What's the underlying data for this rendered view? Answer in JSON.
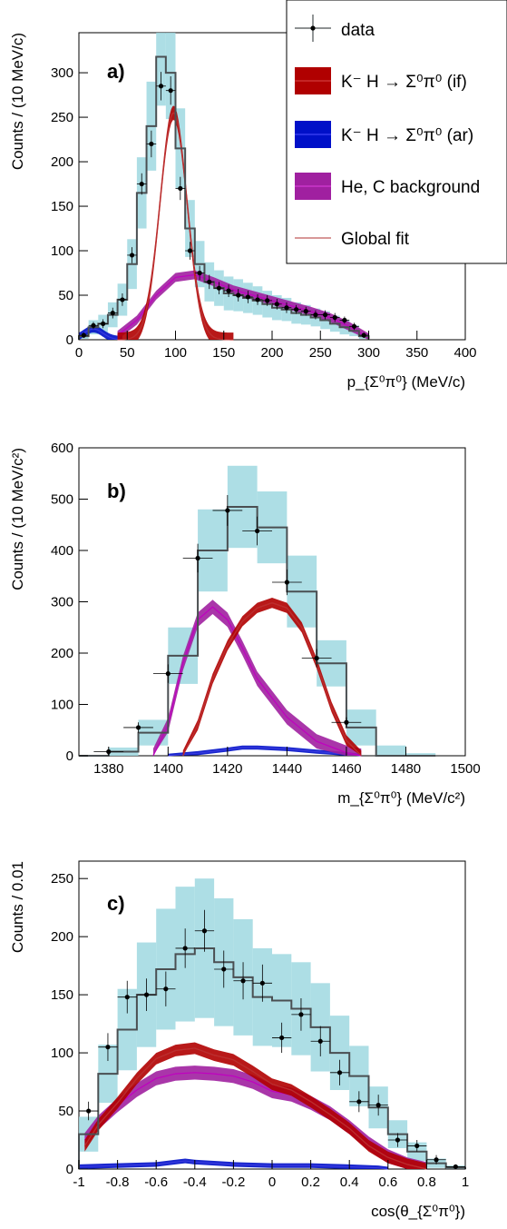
{
  "colors": {
    "data": "#000000",
    "mc_sum": "#4a4f52",
    "syst_band": "#9fd8e0",
    "if": "#b00000",
    "if_band": "#d33333",
    "ar": "#0010c8",
    "ar_band": "#3a3ae0",
    "bkg": "#c000c0",
    "bkg_band": "#a020a0",
    "fit": "#b03030"
  },
  "legend": {
    "data": "data",
    "if": "K⁻ H → Σ⁰π⁰ (if)",
    "ar": "K⁻ H → Σ⁰π⁰ (ar)",
    "bkg": "He, C background",
    "fit": "Global fit"
  },
  "chart_data": [
    {
      "type": "histogram",
      "panel_label": "a)",
      "xlabel": "p_{Σ⁰π⁰} (MeV/c)",
      "ylabel": "Counts / (10 MeV/c)",
      "xlim": [
        0,
        400
      ],
      "ylim": [
        0,
        345
      ],
      "xticks": [
        0,
        50,
        100,
        150,
        200,
        250,
        300,
        350,
        400
      ],
      "yticks": [
        0,
        50,
        100,
        150,
        200,
        250,
        300
      ],
      "data_points": {
        "x": [
          5,
          15,
          25,
          35,
          45,
          55,
          65,
          75,
          85,
          95,
          105,
          115,
          125,
          135,
          145,
          155,
          165,
          175,
          185,
          195,
          205,
          215,
          225,
          235,
          245,
          255,
          265,
          275,
          285,
          295
        ],
        "y": [
          5,
          16,
          18,
          30,
          45,
          95,
          175,
          220,
          285,
          280,
          170,
          100,
          75,
          65,
          58,
          55,
          50,
          48,
          45,
          44,
          40,
          36,
          34,
          32,
          28,
          28,
          25,
          22,
          15,
          5
        ],
        "yerr": [
          3,
          4,
          5,
          6,
          7,
          9,
          12,
          15,
          16,
          16,
          13,
          10,
          8,
          8,
          7,
          7,
          7,
          7,
          6,
          6,
          6,
          6,
          5,
          5,
          5,
          5,
          5,
          4,
          4,
          3
        ]
      },
      "mc_sum": {
        "edges": [
          0,
          10,
          20,
          30,
          40,
          50,
          60,
          70,
          80,
          90,
          100,
          110,
          120,
          130,
          140,
          150,
          160,
          170,
          180,
          190,
          200,
          210,
          220,
          230,
          240,
          250,
          260,
          270,
          280,
          290,
          300
        ],
        "values": [
          4,
          14,
          18,
          28,
          45,
          85,
          165,
          240,
          318,
          300,
          215,
          125,
          85,
          65,
          58,
          52,
          50,
          47,
          44,
          40,
          36,
          34,
          30,
          28,
          25,
          22,
          18,
          14,
          10,
          4
        ],
        "syst": [
          3,
          8,
          10,
          14,
          18,
          28,
          40,
          50,
          55,
          52,
          45,
          32,
          26,
          22,
          20,
          19,
          18,
          17,
          16,
          15,
          14,
          13,
          12,
          11,
          10,
          10,
          9,
          8,
          6,
          3
        ]
      },
      "if_curve": {
        "peak": 255,
        "mean": 98,
        "sigma": 14,
        "band": 8,
        "xmin": 40,
        "xmax": 160
      },
      "bkg_curve": {
        "x": [
          40,
          60,
          80,
          100,
          120,
          140,
          160,
          180,
          200,
          220,
          240,
          260,
          280,
          300
        ],
        "y": [
          5,
          22,
          50,
          70,
          73,
          65,
          56,
          50,
          44,
          38,
          32,
          25,
          15,
          2
        ],
        "band": 5
      },
      "ar_curve": {
        "peak": 12,
        "mean": 15,
        "sigma": 10,
        "band": 4,
        "xmin": 0,
        "xmax": 45
      },
      "fit_line": true
    },
    {
      "type": "histogram",
      "panel_label": "b)",
      "xlabel": "m_{Σ⁰π⁰} (MeV/c²)",
      "ylabel": "Counts / (10 MeV/c²)",
      "xlim": [
        1370,
        1500
      ],
      "ylim": [
        0,
        600
      ],
      "xticks": [
        1380,
        1400,
        1420,
        1440,
        1460,
        1480,
        1500
      ],
      "yticks": [
        0,
        100,
        200,
        300,
        400,
        500,
        600
      ],
      "data_points": {
        "x": [
          1380,
          1390,
          1400,
          1410,
          1420,
          1430,
          1440,
          1450,
          1460
        ],
        "y": [
          8,
          55,
          160,
          385,
          478,
          438,
          338,
          190,
          65
        ],
        "yerr": [
          4,
          10,
          18,
          28,
          30,
          28,
          25,
          18,
          10
        ]
      },
      "mc_sum": {
        "edges": [
          1370,
          1380,
          1390,
          1400,
          1410,
          1420,
          1430,
          1440,
          1450,
          1460,
          1470,
          1480,
          1490
        ],
        "values": [
          0,
          8,
          45,
          195,
          400,
          485,
          445,
          320,
          180,
          55,
          0,
          0
        ],
        "syst": [
          0,
          8,
          25,
          55,
          80,
          80,
          70,
          70,
          45,
          35,
          20,
          5
        ]
      },
      "bkg_curve": {
        "x": [
          1395,
          1400,
          1405,
          1410,
          1415,
          1420,
          1425,
          1430,
          1440,
          1450,
          1460,
          1465
        ],
        "y": [
          0,
          60,
          180,
          265,
          290,
          265,
          210,
          150,
          75,
          28,
          6,
          0
        ],
        "band": 14
      },
      "if_curve": {
        "x": [
          1405,
          1410,
          1415,
          1420,
          1425,
          1430,
          1435,
          1440,
          1445,
          1450,
          1455,
          1460,
          1465
        ],
        "y": [
          0,
          60,
          150,
          215,
          262,
          288,
          298,
          288,
          250,
          180,
          95,
          30,
          0
        ],
        "band": 10
      },
      "ar_curve": {
        "x": [
          1400,
          1410,
          1420,
          1425,
          1430,
          1440,
          1450,
          1460,
          1465
        ],
        "y": [
          0,
          5,
          12,
          16,
          16,
          13,
          8,
          3,
          0
        ],
        "band": 4
      },
      "fit_line": true
    },
    {
      "type": "histogram",
      "panel_label": "c)",
      "xlabel": "cos(θ_{Σ⁰π⁰})",
      "ylabel": "Counts / 0.01",
      "xlim": [
        -1,
        1
      ],
      "ylim": [
        0,
        265
      ],
      "xticks": [
        -1,
        -0.8,
        -0.6,
        -0.4,
        -0.2,
        0,
        0.2,
        0.4,
        0.6,
        0.8,
        1
      ],
      "yticks": [
        0,
        50,
        100,
        150,
        200,
        250
      ],
      "data_points": {
        "x": [
          -0.95,
          -0.85,
          -0.75,
          -0.65,
          -0.55,
          -0.45,
          -0.35,
          -0.25,
          -0.15,
          -0.05,
          0.05,
          0.15,
          0.25,
          0.35,
          0.45,
          0.55,
          0.65,
          0.75,
          0.85,
          0.95
        ],
        "y": [
          50,
          105,
          148,
          150,
          155,
          190,
          205,
          172,
          162,
          160,
          113,
          133,
          110,
          83,
          58,
          55,
          25,
          20,
          8,
          2
        ],
        "yerr": [
          8,
          12,
          14,
          14,
          15,
          17,
          18,
          16,
          16,
          16,
          13,
          14,
          13,
          11,
          9,
          9,
          6,
          5,
          4,
          2
        ]
      },
      "mc_sum": {
        "edges": [
          -1,
          -0.9,
          -0.8,
          -0.7,
          -0.6,
          -0.5,
          -0.4,
          -0.3,
          -0.2,
          -0.1,
          0,
          0.1,
          0.2,
          0.3,
          0.4,
          0.5,
          0.6,
          0.7,
          0.8,
          0.9,
          1
        ],
        "values": [
          30,
          82,
          120,
          150,
          172,
          185,
          190,
          178,
          165,
          148,
          145,
          138,
          122,
          100,
          80,
          53,
          30,
          15,
          5,
          1
        ],
        "syst": [
          15,
          25,
          35,
          45,
          52,
          58,
          60,
          55,
          50,
          42,
          40,
          40,
          38,
          32,
          26,
          18,
          12,
          8,
          4,
          2
        ]
      },
      "if_curve": {
        "x": [
          -0.97,
          -0.9,
          -0.8,
          -0.7,
          -0.6,
          -0.5,
          -0.4,
          -0.3,
          -0.2,
          -0.1,
          0,
          0.1,
          0.2,
          0.3,
          0.4,
          0.5,
          0.6,
          0.7,
          0.8
        ],
        "y": [
          20,
          38,
          57,
          78,
          95,
          102,
          104,
          98,
          94,
          84,
          73,
          68,
          58,
          47,
          35,
          20,
          10,
          4,
          0
        ],
        "band": 5
      },
      "bkg_curve": {
        "x": [
          -0.97,
          -0.9,
          -0.8,
          -0.7,
          -0.6,
          -0.5,
          -0.4,
          -0.3,
          -0.2,
          -0.1,
          0,
          0.1,
          0.2,
          0.3,
          0.4,
          0.5,
          0.6,
          0.7,
          0.8
        ],
        "y": [
          25,
          40,
          55,
          68,
          78,
          82,
          83,
          82,
          80,
          75,
          67,
          64,
          57,
          48,
          36,
          22,
          11,
          4,
          0
        ],
        "band": 6
      },
      "ar_curve": {
        "x": [
          -1,
          -0.8,
          -0.6,
          -0.5,
          -0.45,
          -0.4,
          -0.3,
          -0.2,
          0,
          0.2,
          0.4,
          0.55,
          0.6
        ],
        "y": [
          2,
          3,
          4,
          6,
          7,
          6,
          5,
          4,
          3,
          3,
          2,
          1,
          0
        ],
        "band": 2
      },
      "fit_line": true
    }
  ]
}
